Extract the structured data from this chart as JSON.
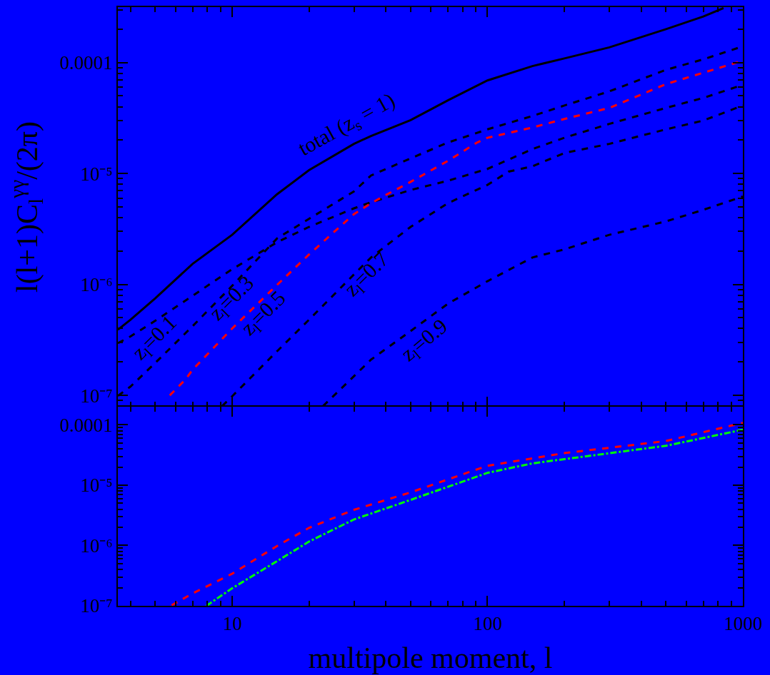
{
  "chart_data": [
    {
      "type": "line",
      "ylabel": "l(l+1)C$_{l}$$^{γγ}$/(2π)",
      "log": "xy",
      "grid": false,
      "tick_labels": "y",
      "marker": "none",
      "xlim": [
        3.57,
        1000
      ],
      "xticks": [
        {
          "value": 4,
          "label": null
        },
        {
          "value": 5,
          "label": null
        },
        {
          "value": 6,
          "label": null
        },
        {
          "value": 7,
          "label": null
        },
        {
          "value": 8,
          "label": null
        },
        {
          "value": 9,
          "label": null
        },
        10,
        {
          "value": 20,
          "label": null
        },
        {
          "value": 30,
          "label": null
        },
        {
          "value": 40,
          "label": null
        },
        {
          "value": 50,
          "label": null
        },
        {
          "value": 60,
          "label": null
        },
        {
          "value": 70,
          "label": null
        },
        {
          "value": 80,
          "label": null
        },
        {
          "value": 90,
          "label": null
        },
        100,
        {
          "value": 200,
          "label": null
        },
        {
          "value": 300,
          "label": null
        },
        {
          "value": 400,
          "label": null
        },
        {
          "value": 500,
          "label": null
        },
        {
          "value": 600,
          "label": null
        },
        {
          "value": 700,
          "label": null
        },
        {
          "value": 800,
          "label": null
        },
        {
          "value": 900,
          "label": null
        },
        1000
      ],
      "ylim": [
        7.9e-08,
        0.000316
      ],
      "yticks": [
        {
          "value": 9e-08,
          "label": null
        },
        {
          "value": 1e-07,
          "label": "10⁻⁷"
        },
        {
          "value": 2e-07,
          "label": null
        },
        {
          "value": 3e-07,
          "label": null
        },
        {
          "value": 4e-07,
          "label": null
        },
        {
          "value": 5e-07,
          "label": null
        },
        {
          "value": 6e-07,
          "label": null
        },
        {
          "value": 7e-07,
          "label": null
        },
        {
          "value": 8e-07,
          "label": null
        },
        {
          "value": 9e-07,
          "label": null
        },
        {
          "value": 1e-06,
          "label": "10⁻⁶"
        },
        {
          "value": 2e-06,
          "label": null
        },
        {
          "value": 3e-06,
          "label": null
        },
        {
          "value": 4e-06,
          "label": null
        },
        {
          "value": 5e-06,
          "label": null
        },
        {
          "value": 6e-06,
          "label": null
        },
        {
          "value": 7e-06,
          "label": null
        },
        {
          "value": 8e-06,
          "label": null
        },
        {
          "value": 9e-06,
          "label": null
        },
        {
          "value": 1e-05,
          "label": "10⁻⁵"
        },
        {
          "value": 2e-05,
          "label": null
        },
        {
          "value": 3e-05,
          "label": null
        },
        {
          "value": 4e-05,
          "label": null
        },
        {
          "value": 5e-05,
          "label": null
        },
        {
          "value": 6e-05,
          "label": null
        },
        {
          "value": 7e-05,
          "label": null
        },
        {
          "value": 8e-05,
          "label": null
        },
        {
          "value": 9e-05,
          "label": null
        },
        0.0001,
        {
          "value": 0.0002,
          "label": null
        },
        {
          "value": 0.0003,
          "label": null
        }
      ],
      "series": [
        {
          "color": "#000000",
          "line_style": "solid",
          "x": [
            3.57,
            4,
            5,
            7,
            10,
            15,
            20,
            30,
            35,
            50,
            70,
            100,
            150,
            200,
            300,
            500,
            700,
            840
          ],
          "values": [
            3.9e-07,
            4.8e-07,
            7.5e-07,
            1.53e-06,
            2.8e-06,
            6.5e-06,
            1.07e-05,
            1.85e-05,
            2.18e-05,
            3.03e-05,
            4.57e-05,
            6.9e-05,
            9.3e-05,
            0.000109,
            0.000137,
            0.0002,
            0.00026,
            0.00031
          ]
        },
        {
          "color": "#000000",
          "line_style": "dashed",
          "x": [
            3.57,
            4,
            5,
            7,
            10,
            15,
            20,
            30,
            35,
            50,
            70,
            100,
            150,
            200,
            300,
            500,
            700,
            1000
          ],
          "values": [
            2.95e-07,
            3.4e-07,
            4.7e-07,
            7.9e-07,
            1.37e-06,
            2.4e-06,
            3.3e-06,
            4.85e-06,
            5.5e-06,
            7.1e-06,
            8.6e-06,
            1.1e-05,
            1.66e-05,
            2.1e-05,
            2.8e-05,
            3.9e-05,
            4.8e-05,
            6.3e-05
          ]
        },
        {
          "color": "#000000",
          "line_style": "dashed",
          "x": [
            3.57,
            4,
            5,
            7,
            10,
            15,
            20,
            30,
            35,
            50,
            70,
            100,
            150,
            200,
            300,
            500,
            700,
            1000
          ],
          "values": [
            9.9e-08,
            1.2e-07,
            1.96e-07,
            4.2e-07,
            9.7e-07,
            2.6e-06,
            3.9e-06,
            6.9e-06,
            9.6e-06,
            1.37e-05,
            1.9e-05,
            2.5e-05,
            3.3e-05,
            4.1e-05,
            5.5e-05,
            8.6e-05,
            0.000107,
            0.00014
          ]
        },
        {
          "color": "#ff0000",
          "line_style": "dashed",
          "x": [
            5.7,
            6.55,
            7,
            10,
            15,
            20,
            30,
            35,
            40,
            50,
            70,
            91,
            100,
            150,
            200,
            300,
            500,
            700,
            1000
          ],
          "values": [
            1e-07,
            1.38e-07,
            1.7e-07,
            4e-07,
            9.9e-07,
            1.86e-06,
            4.3e-06,
            5.4e-06,
            6.4e-06,
            8.4e-06,
            1.3e-05,
            1.9e-05,
            2.1e-05,
            2.6e-05,
            3.1e-05,
            3.9e-05,
            6.4e-05,
            8.1e-05,
            0.000104
          ]
        },
        {
          "color": "#000000",
          "line_style": "dashed",
          "x": [
            9.14,
            10,
            15,
            20,
            30,
            35,
            50,
            70,
            100,
            121,
            150,
            200,
            300,
            500,
            700,
            1000
          ],
          "values": [
            8e-08,
            9.8e-08,
            2.5e-07,
            4.8e-07,
            1.23e-06,
            1.75e-06,
            3.3e-06,
            5.4e-06,
            7.9e-06,
            1.04e-05,
            1.16e-05,
            1.53e-05,
            1.85e-05,
            2.5e-05,
            3e-05,
            4.1e-05
          ]
        },
        {
          "color": "#000000",
          "line_style": "dashed",
          "x": [
            22.7,
            35,
            50,
            70,
            100,
            150,
            200,
            300,
            500,
            700,
            1000
          ],
          "values": [
            8e-08,
            2.1e-07,
            3.8e-07,
            6.7e-07,
            1.07e-06,
            1.75e-06,
            2.07e-06,
            2.8e-06,
            3.7e-06,
            4.7e-06,
            6.2e-06
          ]
        }
      ],
      "annotations": [
        {
          "text": "total (z$_{s}$ = 1)",
          "x": 30,
          "y": 1.85e-05
        },
        {
          "text": "z$_{l}$=0.1",
          "x": 5,
          "y": 4.7e-07
        },
        {
          "text": "z$_{l}$=0.3",
          "x": 10,
          "y": 9.7e-07
        },
        {
          "text": "z$_{l}$=0.5",
          "x": 15,
          "y": 9.9e-07
        },
        {
          "text": "z$_{l}$=0.7",
          "x": 35,
          "y": 1.75e-06
        },
        {
          "text": "z$_{l}$=0.9",
          "x": 50,
          "y": 3.8e-07
        }
      ]
    },
    {
      "type": "line",
      "xlabel": "multipole moment, l",
      "log": "xy",
      "grid": false,
      "marker": "none",
      "xlim": [
        3.57,
        1000
      ],
      "xticks": [
        {
          "value": 4,
          "label": null
        },
        {
          "value": 5,
          "label": null
        },
        {
          "value": 6,
          "label": null
        },
        {
          "value": 7,
          "label": null
        },
        {
          "value": 8,
          "label": null
        },
        {
          "value": 9,
          "label": null
        },
        10,
        {
          "value": 20,
          "label": null
        },
        {
          "value": 30,
          "label": null
        },
        {
          "value": 40,
          "label": null
        },
        {
          "value": 50,
          "label": null
        },
        {
          "value": 60,
          "label": null
        },
        {
          "value": 70,
          "label": null
        },
        {
          "value": 80,
          "label": null
        },
        {
          "value": 90,
          "label": null
        },
        100,
        {
          "value": 200,
          "label": null
        },
        {
          "value": 300,
          "label": null
        },
        {
          "value": 400,
          "label": null
        },
        {
          "value": 500,
          "label": null
        },
        {
          "value": 600,
          "label": null
        },
        {
          "value": 700,
          "label": null
        },
        {
          "value": 800,
          "label": null
        },
        {
          "value": 900,
          "label": null
        },
        1000
      ],
      "ylim": [
        1e-07,
        0.0002
      ],
      "yticks": [
        {
          "value": 1e-07,
          "label": "10⁻⁷"
        },
        {
          "value": 2e-07,
          "label": null
        },
        {
          "value": 3e-07,
          "label": null
        },
        {
          "value": 4e-07,
          "label": null
        },
        {
          "value": 5e-07,
          "label": null
        },
        {
          "value": 6e-07,
          "label": null
        },
        {
          "value": 7e-07,
          "label": null
        },
        {
          "value": 8e-07,
          "label": null
        },
        {
          "value": 9e-07,
          "label": null
        },
        {
          "value": 1e-06,
          "label": "10⁻⁶"
        },
        {
          "value": 2e-06,
          "label": null
        },
        {
          "value": 3e-06,
          "label": null
        },
        {
          "value": 4e-06,
          "label": null
        },
        {
          "value": 5e-06,
          "label": null
        },
        {
          "value": 6e-06,
          "label": null
        },
        {
          "value": 7e-06,
          "label": null
        },
        {
          "value": 8e-06,
          "label": null
        },
        {
          "value": 9e-06,
          "label": null
        },
        {
          "value": 1e-05,
          "label": "10⁻⁵"
        },
        {
          "value": 2e-05,
          "label": null
        },
        {
          "value": 3e-05,
          "label": null
        },
        {
          "value": 4e-05,
          "label": null
        },
        {
          "value": 5e-05,
          "label": null
        },
        {
          "value": 6e-05,
          "label": null
        },
        {
          "value": 7e-05,
          "label": null
        },
        {
          "value": 8e-05,
          "label": null
        },
        {
          "value": 9e-05,
          "label": null
        },
        0.0001
      ],
      "series": [
        {
          "color": "#ff0000",
          "line_style": "dashed",
          "x": [
            5.8,
            7,
            10,
            15,
            20,
            30,
            50,
            100,
            200,
            500,
            1000
          ],
          "values": [
            1.02e-07,
            1.6e-07,
            3.4e-07,
            9.8e-07,
            1.96e-06,
            3.9e-06,
            7.6e-06,
            2.1e-05,
            3.4e-05,
            5.4e-05,
            0.000108
          ]
        },
        {
          "color": "#00ff00",
          "line_style": "dashdot",
          "x": [
            7.93,
            10,
            15,
            20,
            30,
            50,
            100,
            150,
            200,
            500,
            1000
          ],
          "values": [
            1e-07,
            1.95e-07,
            5.5e-07,
            1.16e-06,
            2.7e-06,
            5.7e-06,
            1.6e-05,
            2.3e-05,
            2.7e-05,
            4.5e-05,
            8.3e-05
          ]
        }
      ]
    }
  ]
}
